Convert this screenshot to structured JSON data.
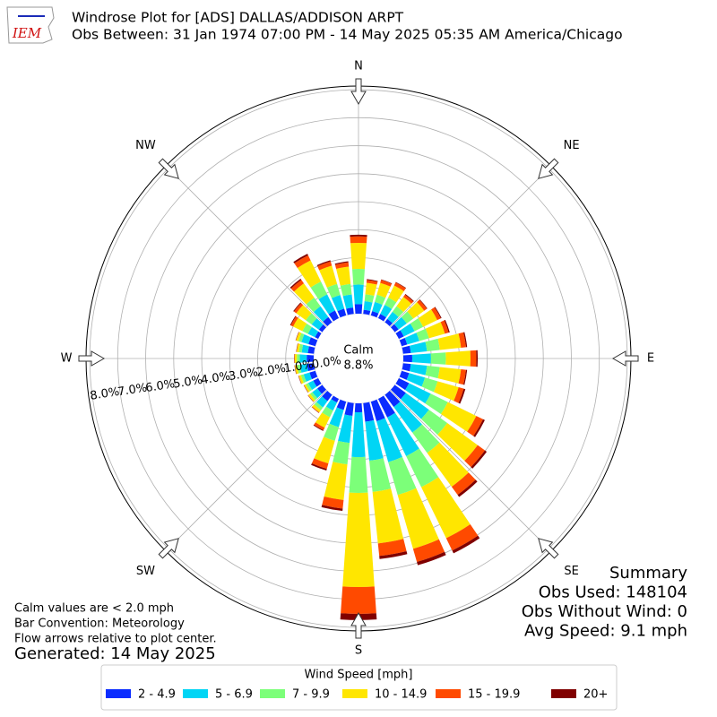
{
  "chart_data": {
    "type": "windrose",
    "title": "Windrose Plot for [ADS] DALLAS/ADDISON ARPT",
    "subtitle": "Obs Between: 31 Jan 1974 07:00 PM - 14 May 2025 05:35 AM America/Chicago",
    "logo_text": "IEM",
    "calm_label": "Calm",
    "calm_value_label": "8.8%",
    "compass_labels": [
      "N",
      "NE",
      "E",
      "SE",
      "S",
      "SW",
      "W",
      "NW"
    ],
    "x": [
      0,
      10,
      20,
      30,
      40,
      50,
      60,
      70,
      80,
      90,
      100,
      110,
      120,
      130,
      140,
      150,
      160,
      170,
      180,
      190,
      200,
      210,
      220,
      230,
      240,
      250,
      260,
      270,
      280,
      290,
      300,
      310,
      320,
      330,
      340,
      350
    ],
    "ylim": [
      0,
      8.13
    ],
    "yticks": [
      {
        "value": 0,
        "label": "0.0%"
      },
      {
        "value": 1,
        "label": "1.0%"
      },
      {
        "value": 2,
        "label": "2.0%"
      },
      {
        "value": 3,
        "label": "3.0%"
      },
      {
        "value": 4,
        "label": "4.0%"
      },
      {
        "value": 5,
        "label": "5.0%"
      },
      {
        "value": 6,
        "label": "6.0%"
      },
      {
        "value": 7,
        "label": "7.0%"
      },
      {
        "value": 8,
        "label": "8.0%"
      }
    ],
    "grid": true,
    "legend_title": "Wind Speed [mph]",
    "series": [
      {
        "name": "2 - 4.9",
        "color": "#0a2cff",
        "values": [
          0.34,
          0.15,
          0.16,
          0.17,
          0.15,
          0.17,
          0.2,
          0.21,
          0.28,
          0.32,
          0.28,
          0.28,
          0.41,
          0.49,
          0.54,
          0.74,
          0.73,
          0.67,
          0.32,
          0.46,
          0.31,
          0.15,
          0.28,
          0.22,
          0.2,
          0.22,
          0.25,
          0.25,
          0.22,
          0.26,
          0.13,
          0.15,
          0.23,
          0.31,
          0.25,
          0.23
        ]
      },
      {
        "name": "5 - 6.9",
        "color": "#00d5f5",
        "values": [
          0.7,
          0.31,
          0.34,
          0.36,
          0.31,
          0.36,
          0.43,
          0.45,
          0.58,
          0.67,
          0.58,
          0.59,
          0.86,
          1.02,
          1.13,
          1.54,
          1.52,
          1.4,
          1.6,
          0.97,
          0.64,
          0.32,
          0.28,
          0.22,
          0.2,
          0.22,
          0.25,
          0.25,
          0.22,
          0.26,
          0.28,
          0.32,
          0.48,
          0.64,
          0.51,
          0.47
        ]
      },
      {
        "name": "7 - 9.9",
        "color": "#7cff79",
        "values": [
          0.56,
          0.25,
          0.27,
          0.29,
          0.25,
          0.29,
          0.34,
          0.36,
          0.46,
          0.53,
          0.46,
          0.47,
          0.68,
          0.81,
          0.9,
          1.23,
          1.22,
          1.12,
          1.28,
          0.77,
          0.51,
          0.26,
          0.12,
          0.1,
          0.09,
          0.1,
          0.1,
          0.1,
          0.1,
          0.11,
          0.22,
          0.26,
          0.38,
          0.51,
          0.41,
          0.38
        ]
      },
      {
        "name": "10 - 14.9",
        "color": "#ffe600",
        "values": [
          0.93,
          0.41,
          0.44,
          0.48,
          0.41,
          0.48,
          0.56,
          0.59,
          0.76,
          0.88,
          0.76,
          0.78,
          1.13,
          1.34,
          1.49,
          2.03,
          2.0,
          1.85,
          3.36,
          1.28,
          0.84,
          0.42,
          0.1,
          0.08,
          0.07,
          0.08,
          0.08,
          0.08,
          0.08,
          0.09,
          0.37,
          0.42,
          0.63,
          0.84,
          0.68,
          0.62
        ]
      },
      {
        "name": "15 - 19.9",
        "color": "#ff4a00",
        "values": [
          0.23,
          0.1,
          0.11,
          0.12,
          0.1,
          0.12,
          0.14,
          0.14,
          0.18,
          0.21,
          0.18,
          0.19,
          0.27,
          0.32,
          0.36,
          0.49,
          0.49,
          0.45,
          0.96,
          0.31,
          0.2,
          0.1,
          0.02,
          0.01,
          0.01,
          0.01,
          0.01,
          0.01,
          0.01,
          0.01,
          0.09,
          0.1,
          0.15,
          0.2,
          0.16,
          0.15
        ]
      },
      {
        "name": "20+",
        "color": "#800000",
        "values": [
          0.06,
          0.03,
          0.02,
          0.02,
          0.03,
          0.02,
          0.03,
          0.04,
          0.04,
          0.05,
          0.04,
          0.06,
          0.07,
          0.08,
          0.09,
          0.11,
          0.12,
          0.11,
          0.22,
          0.08,
          0.06,
          0.03,
          0.01,
          0.01,
          0.01,
          0.01,
          0.01,
          0.01,
          0.01,
          0.01,
          0.03,
          0.03,
          0.05,
          0.06,
          0.04,
          0.04
        ]
      }
    ],
    "notes": [
      "Calm values are < 2.0 mph",
      "Bar Convention: Meteorology",
      "Flow arrows relative to plot center."
    ],
    "generated": "Generated: 14 May 2025",
    "summary": [
      "Summary",
      "Obs Used: 148104",
      "Obs Without Wind: 0",
      "Avg Speed: 9.1 mph"
    ]
  }
}
